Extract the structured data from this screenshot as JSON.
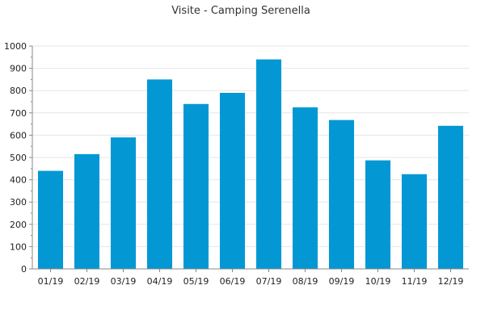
{
  "chart_data": {
    "type": "bar",
    "title": "Visite - Camping Serenella",
    "xlabel": "",
    "ylabel": "",
    "categories": [
      "01/19",
      "02/19",
      "03/19",
      "04/19",
      "05/19",
      "06/19",
      "07/19",
      "08/19",
      "09/19",
      "10/19",
      "11/19",
      "12/19"
    ],
    "values": [
      440,
      515,
      590,
      850,
      740,
      790,
      940,
      725,
      668,
      487,
      425,
      642
    ],
    "ylim": [
      0,
      1000
    ],
    "yticks": [
      0,
      100,
      200,
      300,
      400,
      500,
      600,
      700,
      800,
      900,
      1000
    ],
    "grid": true,
    "legend": "none",
    "bar_color": "#0398d4"
  }
}
